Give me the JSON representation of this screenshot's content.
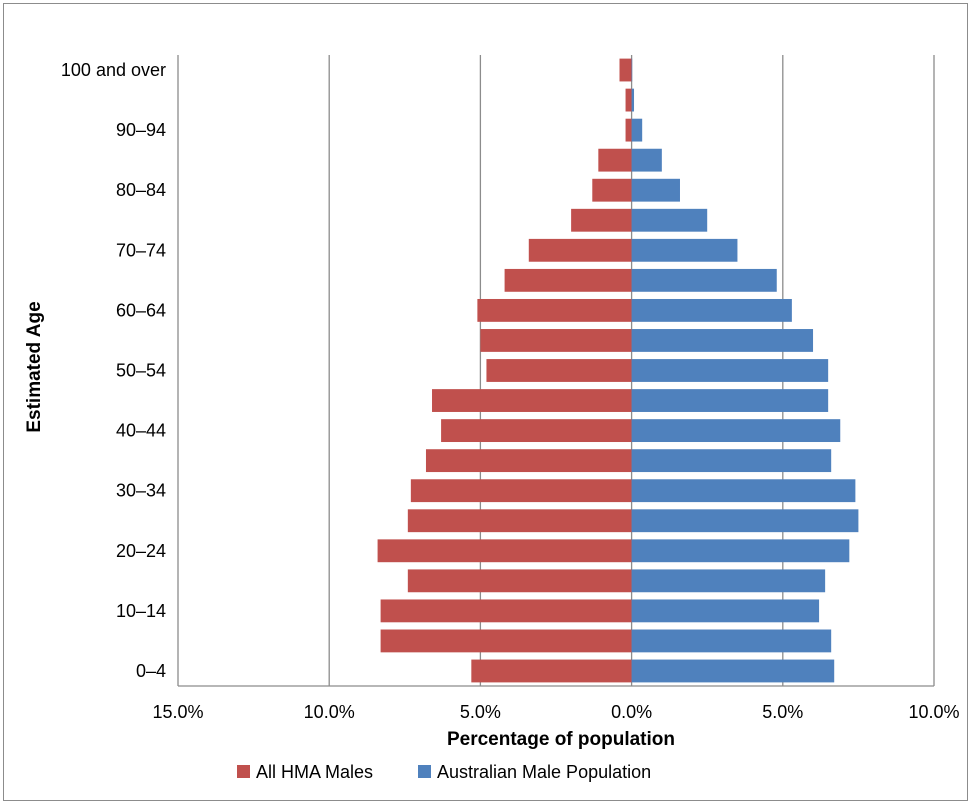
{
  "chart_data": {
    "type": "bar",
    "orientation": "horizontal",
    "layout": "population-pyramid",
    "xlabel": "Percentage of population",
    "ylabel": "Estimated Age",
    "xlim": [
      -15,
      10
    ],
    "x_ticks": [
      -15,
      -10,
      -5,
      0,
      5,
      10
    ],
    "x_tick_labels": [
      "15.0%",
      "10.0%",
      "5.0%",
      "0.0%",
      "5.0%",
      "10.0%"
    ],
    "y_tick_labels": [
      "0–4",
      "10–14",
      "20–24",
      "30–34",
      "40–44",
      "50–54",
      "60–64",
      "70–74",
      "80–84",
      "90–94",
      "100 and over"
    ],
    "grid": "vertical",
    "legend_position": "bottom",
    "series": [
      {
        "name": "All HMA Males",
        "color": "#c0504d",
        "side": "left",
        "values": [
          5.3,
          8.3,
          8.3,
          7.4,
          8.4,
          7.4,
          7.3,
          6.8,
          6.3,
          6.6,
          4.8,
          5.0,
          5.1,
          4.2,
          3.4,
          2.0,
          1.3,
          1.1,
          0.2,
          0.2,
          0.4
        ]
      },
      {
        "name": "Australian Male Population",
        "color": "#4f81bd",
        "side": "right",
        "values": [
          6.7,
          6.6,
          6.2,
          6.4,
          7.2,
          7.5,
          7.4,
          6.6,
          6.9,
          6.5,
          6.5,
          6.0,
          5.3,
          4.8,
          3.5,
          2.5,
          1.6,
          1.0,
          0.35,
          0.08,
          0.02
        ]
      }
    ]
  }
}
